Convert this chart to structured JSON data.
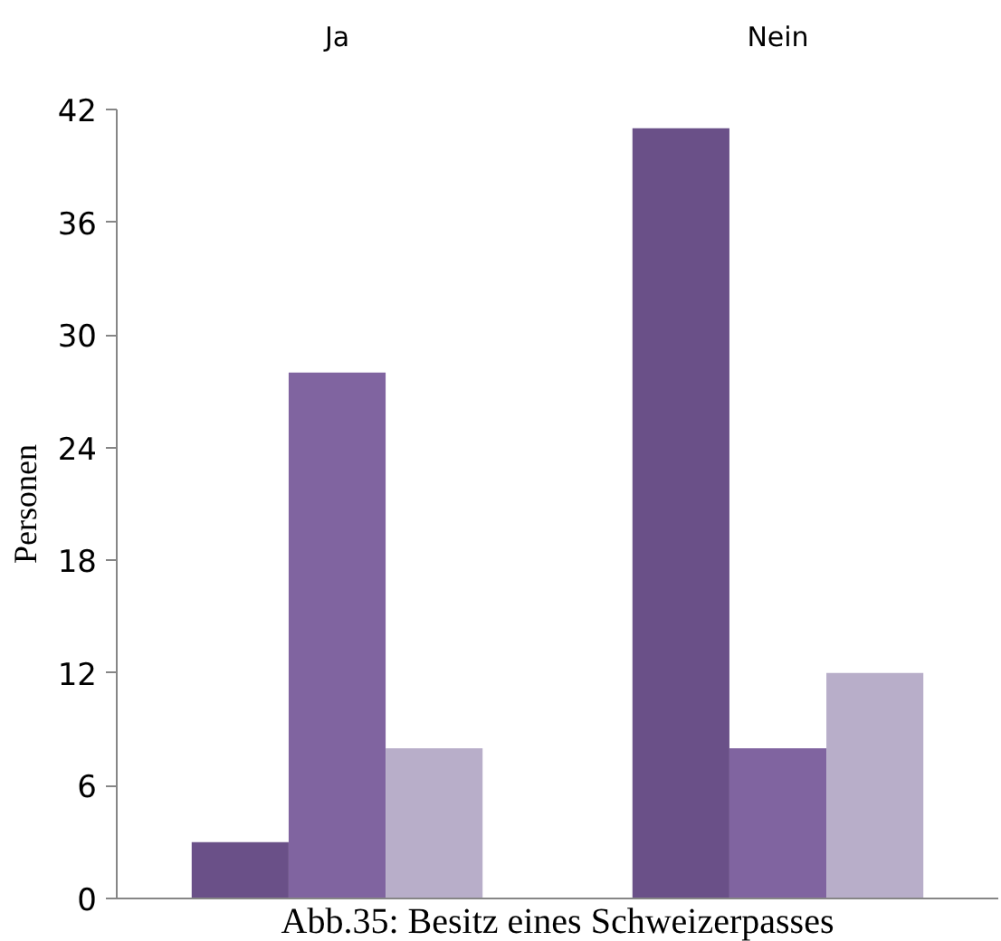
{
  "chart_data": {
    "type": "bar",
    "ylabel": "Personen",
    "categories": [
      "Ja",
      "Nein"
    ],
    "series": [
      {
        "color": "#6a5088",
        "values": [
          3,
          41
        ]
      },
      {
        "color": "#8064a0",
        "values": [
          28,
          8
        ]
      },
      {
        "color": "#b8aec9",
        "values": [
          8,
          12
        ]
      }
    ],
    "ylim": [
      0,
      42
    ],
    "yticks": [
      0,
      6,
      12,
      18,
      24,
      30,
      36,
      42
    ],
    "grid": false,
    "annotations": [
      "Abb.35: Besitz eines Schweizerpasses"
    ]
  }
}
